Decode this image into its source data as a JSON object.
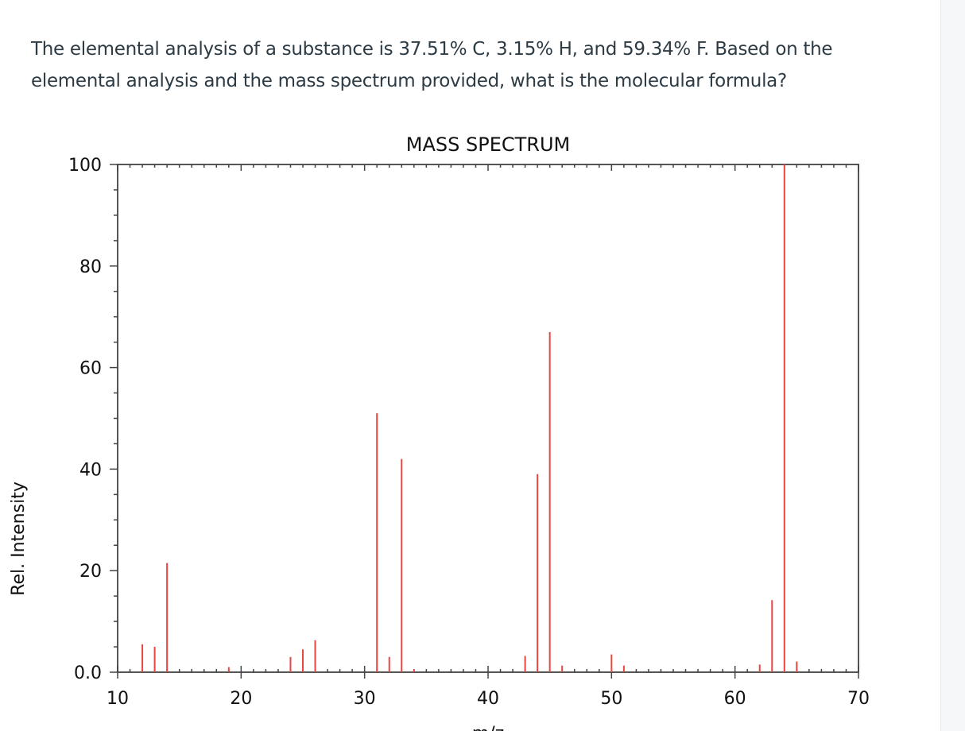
{
  "question": {
    "text": "The elemental analysis of a substance is 37.51% C, 3.15% H, and 59.34% F. Based on the elemental analysis and the mass spectrum provided, what is the molecular formula?"
  },
  "chart_data": {
    "type": "bar",
    "title": "MASS SPECTRUM",
    "xlabel": "m/z",
    "ylabel": "Rel. Intensity",
    "xlim": [
      10,
      70
    ],
    "ylim": [
      0,
      100
    ],
    "x_ticks": [
      "10",
      "20",
      "30",
      "40",
      "50",
      "60",
      "70"
    ],
    "y_ticks": [
      "0.0",
      "20",
      "40",
      "60",
      "80",
      "100"
    ],
    "grid": false,
    "bar_color": "#e8463f",
    "series": [
      {
        "x": [
          12,
          13,
          14,
          19,
          24,
          25,
          26,
          31,
          32,
          33,
          34,
          43,
          44,
          45,
          46,
          50,
          51,
          62,
          63,
          64,
          65
        ],
        "values": [
          5.5,
          5,
          21.5,
          1,
          3,
          4.5,
          6.3,
          51,
          3,
          42,
          0.5,
          3.2,
          39,
          67,
          1.3,
          3.5,
          1.3,
          1.5,
          14.2,
          100,
          2.1
        ]
      }
    ]
  }
}
